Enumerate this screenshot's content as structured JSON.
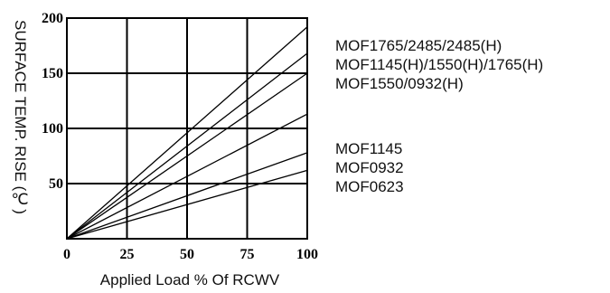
{
  "chart_data": {
    "type": "line",
    "title": "",
    "xlabel": "Applied Load % Of RCWV",
    "ylabel": "SURFACE TEMP. RISE (℃)",
    "xlim": [
      0,
      100
    ],
    "ylim": [
      0,
      200
    ],
    "x_ticks": [
      "0",
      "25",
      "50",
      "75",
      "100"
    ],
    "y_ticks": [
      "50",
      "100",
      "150",
      "200"
    ],
    "grid": true,
    "x": [
      0,
      100
    ],
    "series": [
      {
        "values": [
          0,
          192
        ]
      },
      {
        "values": [
          0,
          168
        ]
      },
      {
        "values": [
          0,
          150
        ]
      },
      {
        "values": [
          0,
          113
        ]
      },
      {
        "values": [
          0,
          78
        ]
      },
      {
        "values": [
          0,
          62
        ]
      }
    ],
    "legend_top": [
      "MOF1765/2485/2485(H)",
      "MOF1145(H)/1550(H)/1765(H)",
      "MOF1550/0932(H)"
    ],
    "legend_bottom": [
      "MOF1145",
      "MOF0932",
      "MOF0623"
    ]
  }
}
